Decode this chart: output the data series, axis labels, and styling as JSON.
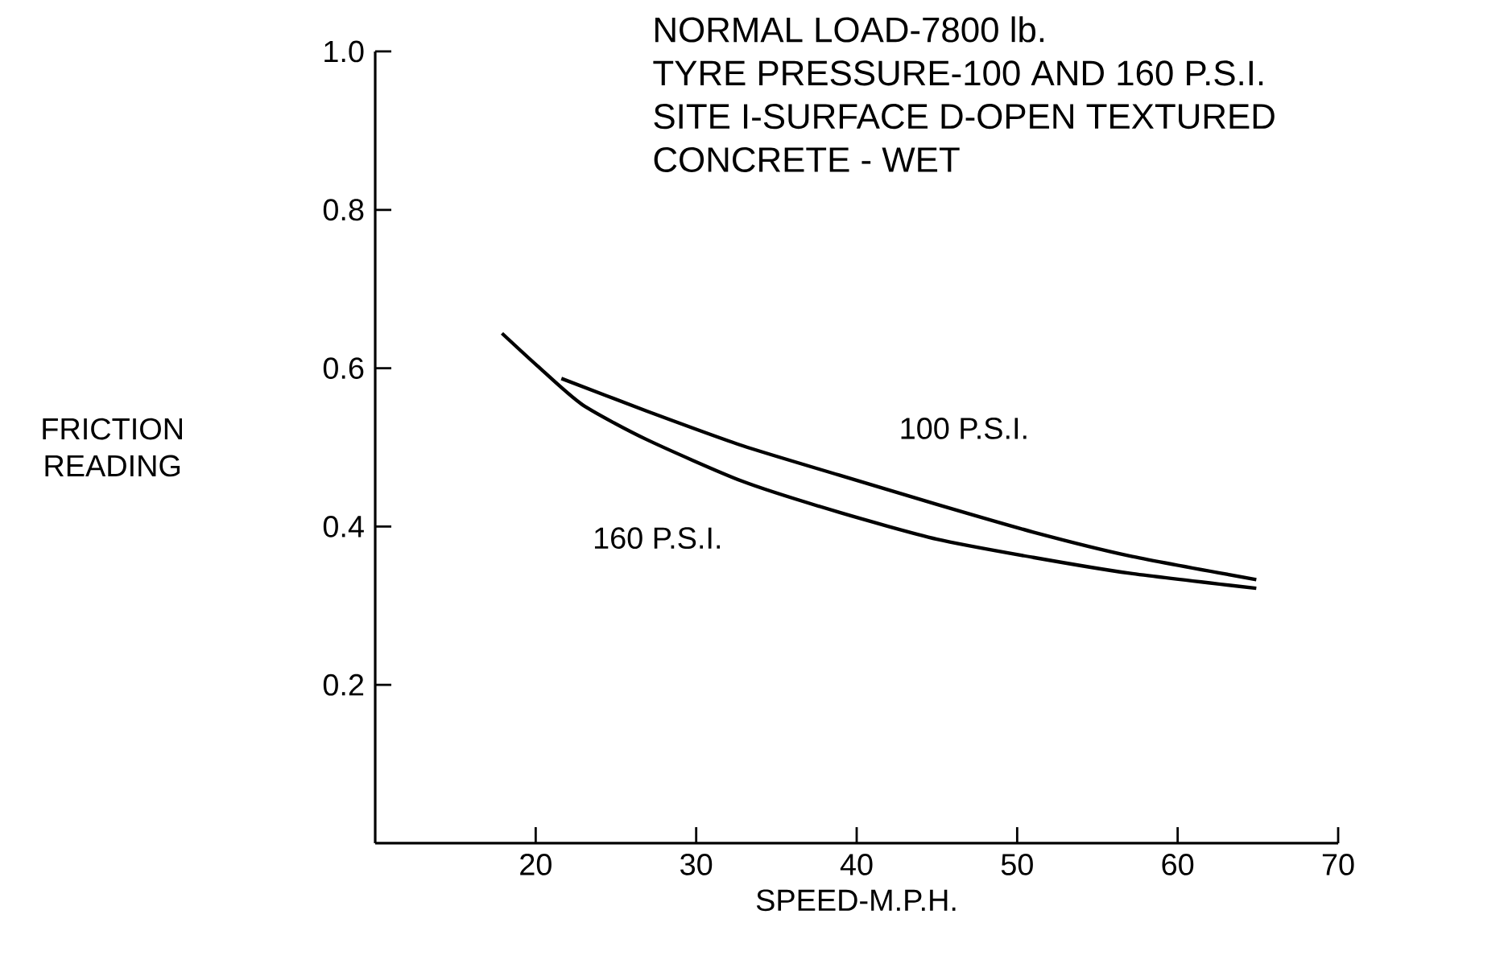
{
  "chart_data": {
    "type": "line",
    "title": "NORMAL LOAD-7800 lb.",
    "annotations": [
      "TYRE PRESSURE-100 AND 160 P.S.I.",
      "SITE I-SURFACE D-OPEN TEXTURED",
      "CONCRETE - WET"
    ],
    "xlabel": "SPEED-M.P.H.",
    "ylabel": "FRICTION READING",
    "xlim": [
      10,
      70
    ],
    "xticks": [
      20,
      30,
      40,
      50,
      60,
      70
    ],
    "ylim": [
      0,
      1.0
    ],
    "yticks": [
      0.2,
      0.4,
      0.6,
      0.8,
      {
        "value": 1.0,
        "label": "1.0"
      }
    ],
    "grid": false,
    "marker": "none",
    "line_style": "solid",
    "series": [
      {
        "name": "100 P.S.I.",
        "color": "#000000",
        "x": [
          21.6,
          26.9,
          32.9,
          38.9,
          45,
          51,
          57,
          64.9
        ],
        "values": [
          0.587,
          0.546,
          0.502,
          0.465,
          0.428,
          0.393,
          0.363,
          0.333
        ]
      },
      {
        "name": "160 P.S.I.",
        "color": "#000000",
        "x": [
          17.9,
          20.1,
          22.9,
          26.9,
          32.9,
          38.9,
          45,
          51,
          57,
          64.9
        ],
        "values": [
          0.644,
          0.603,
          0.554,
          0.51,
          0.457,
          0.418,
          0.384,
          0.361,
          0.341,
          0.322
        ]
      }
    ]
  }
}
